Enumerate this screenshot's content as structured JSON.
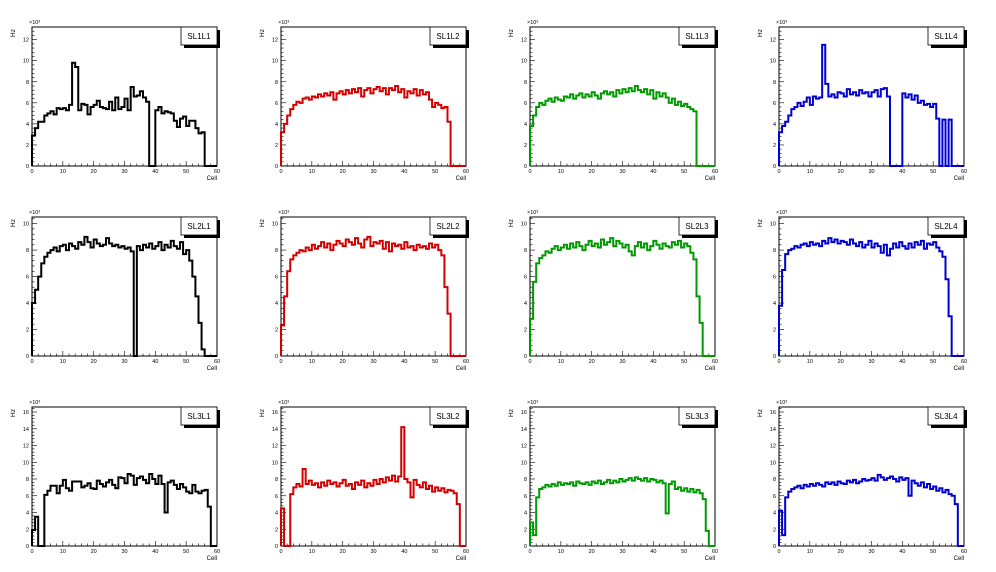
{
  "chart_data": {
    "type": "bar",
    "style": "step-histogram grid 3x4",
    "xlabel": "Cell",
    "ylabel": "Hz",
    "y_multiplier": "×10³",
    "xlim": [
      0,
      60
    ],
    "x_ticks": [
      0,
      10,
      20,
      30,
      40,
      50,
      60
    ],
    "colors": {
      "L1": "#000000",
      "L2": "#d40000",
      "L3": "#009a00",
      "L4": "#0000d0"
    },
    "rows": [
      {
        "ylim": [
          0,
          13.2
        ],
        "y_ticks": [
          0,
          2,
          4,
          6,
          8,
          10,
          12
        ]
      },
      {
        "ylim": [
          0,
          10.5
        ],
        "y_ticks": [
          0,
          2,
          4,
          6,
          8,
          10
        ]
      },
      {
        "ylim": [
          0,
          16.6
        ],
        "y_ticks": [
          0,
          2,
          4,
          6,
          8,
          10,
          12,
          14,
          16
        ]
      }
    ],
    "histograms": [
      {
        "title": "SL1L1",
        "row": 0,
        "col": 0,
        "color": "#000000",
        "values": [
          2.9,
          3.6,
          4.2,
          4.2,
          4.8,
          5.0,
          5.2,
          4.9,
          5.5,
          5.4,
          5.5,
          5.3,
          5.8,
          9.8,
          9.4,
          5.3,
          5.9,
          5.8,
          4.9,
          5.6,
          5.8,
          6.2,
          5.6,
          5.5,
          5.4,
          6.1,
          5.3,
          6.5,
          5.4,
          5.6,
          6.4,
          5.3,
          7.5,
          6.6,
          6.7,
          7.1,
          6.5,
          6.1,
          0,
          0,
          5.3,
          5.6,
          5.0,
          5.2,
          5.1,
          5.0,
          4.3,
          3.7,
          4.5,
          4.7,
          3.8,
          4.3,
          4.3,
          3.6,
          3.1,
          3.2,
          0,
          0,
          0,
          0
        ]
      },
      {
        "title": "SL1L2",
        "row": 0,
        "col": 1,
        "color": "#d40000",
        "values": [
          3.2,
          4.0,
          4.8,
          5.4,
          5.8,
          6.1,
          6.0,
          6.4,
          6.5,
          6.3,
          6.6,
          6.5,
          6.8,
          6.6,
          6.9,
          6.7,
          7.0,
          6.3,
          6.9,
          7.1,
          6.8,
          7.2,
          6.9,
          7.3,
          7.0,
          7.4,
          6.6,
          7.2,
          7.4,
          6.9,
          7.3,
          7.5,
          7.1,
          7.4,
          6.8,
          7.4,
          7.2,
          7.6,
          7.0,
          7.3,
          6.5,
          7.1,
          6.9,
          7.3,
          6.7,
          7.2,
          6.8,
          7.0,
          6.3,
          5.6,
          6.0,
          5.8,
          5.5,
          5.6,
          4.2,
          0,
          0,
          0,
          0,
          0
        ]
      },
      {
        "title": "SL1L3",
        "row": 0,
        "col": 2,
        "color": "#009a00",
        "values": [
          3.8,
          4.8,
          5.6,
          6.0,
          5.8,
          6.2,
          6.4,
          6.1,
          6.5,
          6.3,
          6.2,
          6.6,
          6.5,
          6.8,
          6.4,
          6.7,
          6.9,
          6.5,
          6.8,
          6.6,
          7.0,
          6.7,
          6.4,
          6.9,
          7.1,
          6.8,
          7.0,
          6.6,
          7.2,
          6.9,
          7.3,
          7.0,
          7.4,
          7.1,
          7.6,
          7.2,
          7.0,
          7.3,
          6.8,
          7.2,
          6.4,
          7.0,
          6.6,
          6.9,
          6.5,
          6.0,
          6.4,
          5.8,
          6.1,
          5.7,
          5.9,
          5.6,
          5.4,
          5.2,
          0,
          0,
          0,
          0,
          0,
          0
        ]
      },
      {
        "title": "SL1L4",
        "row": 0,
        "col": 3,
        "color": "#0000d0",
        "values": [
          3.2,
          3.8,
          4.2,
          4.8,
          5.4,
          5.6,
          6.0,
          5.7,
          6.1,
          6.5,
          5.8,
          6.6,
          6.4,
          6.5,
          11.5,
          7.8,
          6.6,
          6.8,
          6.5,
          7.0,
          6.9,
          6.6,
          7.3,
          6.8,
          7.0,
          6.7,
          7.2,
          6.9,
          7.0,
          6.6,
          7.0,
          7.2,
          6.6,
          7.3,
          7.4,
          6.6,
          0,
          0,
          0,
          0,
          6.9,
          6.5,
          6.8,
          6.3,
          6.7,
          6.0,
          6.2,
          5.8,
          5.9,
          5.6,
          5.9,
          4.5,
          0,
          4.4,
          0,
          4.4,
          0,
          0,
          0,
          0
        ]
      },
      {
        "title": "SL2L1",
        "row": 1,
        "col": 0,
        "color": "#000000",
        "values": [
          4.0,
          5.0,
          6.0,
          7.0,
          7.5,
          7.8,
          8.0,
          8.2,
          7.9,
          8.3,
          8.4,
          8.0,
          8.5,
          8.3,
          8.1,
          8.6,
          8.4,
          9.0,
          8.6,
          8.2,
          8.8,
          8.5,
          8.3,
          8.4,
          8.9,
          8.5,
          8.3,
          8.4,
          8.2,
          8.3,
          8.1,
          8.2,
          7.9,
          0,
          8.3,
          8.0,
          8.4,
          8.2,
          8.5,
          8.1,
          8.3,
          8.6,
          8.0,
          8.4,
          8.2,
          8.7,
          8.3,
          8.1,
          8.6,
          7.7,
          8.0,
          7.2,
          6.0,
          4.5,
          2.5,
          0.5,
          0,
          0,
          0,
          0
        ]
      },
      {
        "title": "SL2L2",
        "row": 1,
        "col": 1,
        "color": "#d40000",
        "values": [
          2.3,
          4.5,
          6.4,
          7.3,
          7.6,
          7.8,
          8.0,
          7.9,
          8.2,
          8.0,
          8.4,
          8.1,
          8.3,
          8.6,
          8.2,
          8.5,
          8.0,
          8.4,
          8.7,
          8.5,
          8.3,
          8.8,
          8.6,
          8.4,
          8.9,
          8.5,
          8.2,
          8.8,
          9.0,
          8.3,
          8.6,
          8.5,
          8.7,
          8.1,
          8.6,
          7.9,
          8.5,
          8.3,
          8.4,
          8.1,
          8.6,
          8.2,
          8.3,
          8.0,
          8.4,
          8.2,
          8.3,
          8.1,
          8.5,
          8.2,
          8.4,
          8.0,
          7.6,
          5.2,
          3.2,
          0,
          0,
          0,
          0,
          0
        ]
      },
      {
        "title": "SL2L3",
        "row": 1,
        "col": 2,
        "color": "#009a00",
        "values": [
          2.8,
          5.6,
          7.0,
          7.4,
          7.6,
          7.9,
          7.8,
          8.1,
          8.3,
          8.0,
          8.2,
          8.4,
          8.1,
          8.5,
          8.2,
          8.6,
          8.3,
          8.0,
          8.4,
          8.7,
          8.3,
          8.5,
          8.2,
          8.8,
          8.4,
          8.6,
          8.9,
          8.3,
          8.7,
          8.5,
          8.2,
          8.4,
          7.9,
          7.6,
          8.3,
          8.6,
          8.2,
          8.5,
          8.0,
          8.3,
          8.7,
          8.4,
          8.1,
          8.5,
          8.3,
          8.2,
          8.6,
          8.4,
          8.7,
          8.2,
          8.5,
          8.3,
          7.8,
          7.3,
          4.5,
          2.5,
          0,
          0,
          0,
          0
        ]
      },
      {
        "title": "SL2L4",
        "row": 1,
        "col": 3,
        "color": "#0000d0",
        "values": [
          3.8,
          6.5,
          7.7,
          8.0,
          8.1,
          8.3,
          8.2,
          8.4,
          8.5,
          8.3,
          8.6,
          8.4,
          8.5,
          8.3,
          8.7,
          8.5,
          8.9,
          8.6,
          8.8,
          8.5,
          8.7,
          8.6,
          8.4,
          8.8,
          8.5,
          8.3,
          8.6,
          8.2,
          8.4,
          8.7,
          8.2,
          8.5,
          8.3,
          7.8,
          8.4,
          7.6,
          8.1,
          8.5,
          8.2,
          8.6,
          8.3,
          8.1,
          8.5,
          8.2,
          8.6,
          8.4,
          8.7,
          8.1,
          8.5,
          8.4,
          8.6,
          8.2,
          7.9,
          7.5,
          5.8,
          3.0,
          0,
          0,
          0,
          0
        ]
      },
      {
        "title": "SL3L1",
        "row": 2,
        "col": 0,
        "color": "#000000",
        "values": [
          1.9,
          3.5,
          0,
          0,
          6.1,
          6.6,
          7.2,
          7.2,
          6.3,
          7.2,
          7.9,
          6.9,
          6.6,
          7.7,
          7.7,
          7.7,
          7.0,
          7.2,
          7.5,
          6.9,
          6.8,
          7.8,
          7.4,
          7.1,
          7.6,
          7.9,
          7.3,
          6.9,
          8.2,
          8.1,
          7.5,
          8.6,
          8.4,
          7.3,
          8.1,
          8.3,
          7.9,
          7.5,
          8.6,
          8.0,
          7.4,
          8.4,
          7.4,
          4.0,
          7.6,
          7.8,
          7.3,
          6.8,
          7.4,
          7.0,
          6.5,
          6.3,
          7.3,
          6.5,
          6.3,
          6.6,
          6.7,
          4.7,
          0,
          0
        ]
      },
      {
        "title": "SL3L2",
        "row": 2,
        "col": 1,
        "color": "#d40000",
        "values": [
          4.5,
          0,
          0,
          6.2,
          7.0,
          7.4,
          7.1,
          9.2,
          7.4,
          7.8,
          7.3,
          7.5,
          7.0,
          7.6,
          7.2,
          7.8,
          7.4,
          7.6,
          7.1,
          7.5,
          7.9,
          7.2,
          7.4,
          6.8,
          7.6,
          7.3,
          7.8,
          7.0,
          7.5,
          7.2,
          7.9,
          7.4,
          8.0,
          7.6,
          8.2,
          7.8,
          8.4,
          7.7,
          8.3,
          14.2,
          8.0,
          7.6,
          5.8,
          7.9,
          7.3,
          7.0,
          7.6,
          6.8,
          7.2,
          6.5,
          7.0,
          6.6,
          6.9,
          6.4,
          6.7,
          6.6,
          6.3,
          5.0,
          0,
          0
        ]
      },
      {
        "title": "SL3L3",
        "row": 2,
        "col": 2,
        "color": "#009a00",
        "values": [
          2.8,
          1.3,
          5.8,
          6.8,
          7.0,
          7.3,
          7.1,
          7.4,
          7.2,
          7.6,
          7.3,
          7.5,
          7.4,
          7.6,
          7.2,
          7.7,
          7.5,
          7.4,
          7.6,
          7.3,
          7.7,
          7.5,
          7.8,
          7.4,
          7.6,
          7.9,
          7.5,
          7.8,
          7.6,
          8.0,
          7.7,
          7.9,
          8.1,
          7.8,
          8.2,
          8.0,
          7.8,
          8.1,
          7.7,
          8.0,
          7.9,
          7.6,
          7.8,
          7.5,
          3.9,
          7.4,
          7.7,
          6.8,
          7.0,
          6.6,
          6.9,
          6.5,
          6.8,
          6.4,
          6.7,
          6.3,
          5.6,
          1.8,
          0,
          0
        ]
      },
      {
        "title": "SL3L4",
        "row": 2,
        "col": 3,
        "color": "#0000d0",
        "values": [
          4.2,
          1.3,
          5.8,
          6.5,
          6.8,
          7.0,
          7.2,
          6.9,
          7.3,
          7.1,
          7.4,
          7.2,
          7.5,
          7.3,
          7.1,
          7.6,
          7.4,
          7.6,
          7.3,
          7.7,
          7.5,
          7.4,
          7.8,
          7.6,
          7.9,
          7.5,
          7.7,
          8.0,
          7.8,
          7.9,
          8.1,
          7.8,
          8.5,
          8.2,
          7.9,
          8.1,
          8.3,
          8.0,
          7.7,
          8.2,
          7.9,
          8.1,
          6.0,
          7.8,
          7.5,
          7.2,
          7.6,
          7.0,
          7.4,
          6.8,
          7.1,
          6.6,
          6.9,
          6.4,
          6.7,
          6.2,
          6.0,
          5.0,
          0,
          0
        ]
      }
    ]
  }
}
